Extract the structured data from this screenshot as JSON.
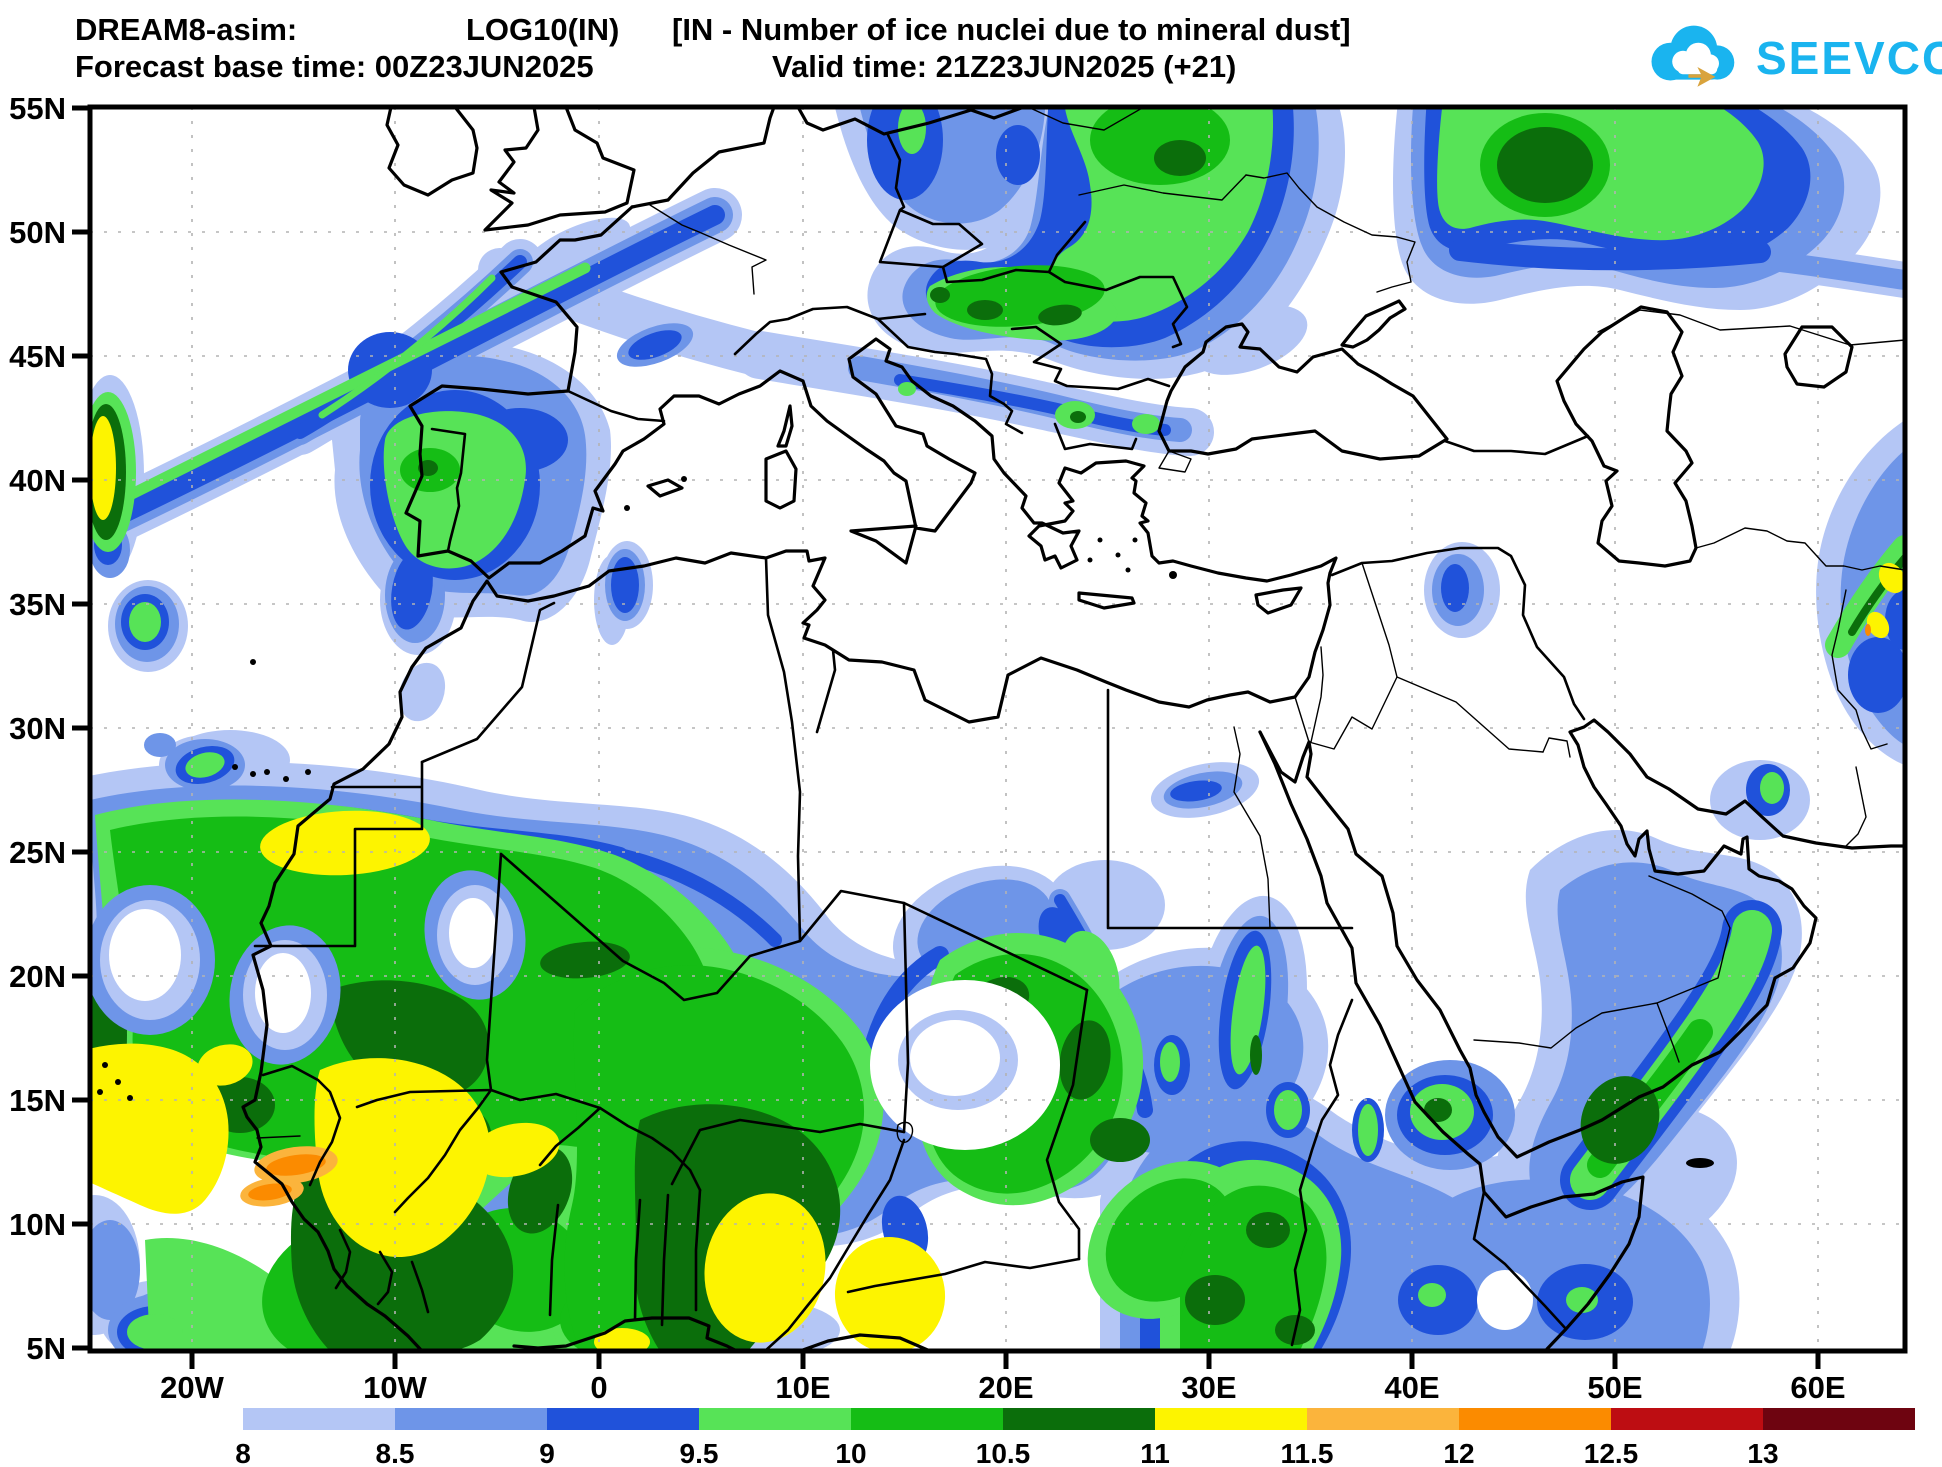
{
  "header": {
    "model": "DREAM8-asim:",
    "variable": "LOG10(IN)",
    "description": "[IN - Number of ice nuclei due to mineral dust]",
    "base_time_label": "Forecast base time: 00Z23JUN2025",
    "valid_time_label": "Valid time: 21Z23JUN2025 (+21)"
  },
  "logo": {
    "text": "SEEVCCC",
    "color": "#1ab4ef",
    "cloud_color": "#1ab4ef",
    "arrow_color": "#d9a33c"
  },
  "map": {
    "lat_labels": [
      "55N",
      "50N",
      "45N",
      "40N",
      "35N",
      "30N",
      "25N",
      "20N",
      "15N",
      "10N",
      "5N"
    ],
    "lon_labels": [
      "20W",
      "10W",
      "0",
      "10E",
      "20E",
      "30E",
      "40E",
      "50E",
      "60E"
    ]
  },
  "colorbar": {
    "labels": [
      "8",
      "8.5",
      "9",
      "9.5",
      "10",
      "10.5",
      "11",
      "11.5",
      "12",
      "12.5",
      "13"
    ],
    "colors": [
      "#b4c6f5",
      "#6e95e8",
      "#2052da",
      "#57e357",
      "#15bd15",
      "#0b6e0b",
      "#fdf400",
      "#fbb43c",
      "#fb8b00",
      "#bd0d12",
      "#6e0410"
    ],
    "quantity": "LOG10(IN)"
  }
}
